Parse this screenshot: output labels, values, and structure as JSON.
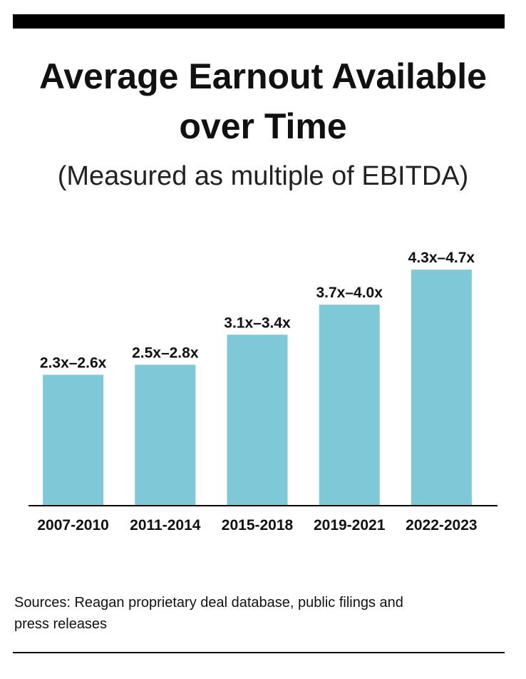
{
  "chart_data": {
    "type": "bar",
    "title": "Average Earnout Available over Time",
    "subtitle": "(Measured as multiple of EBITDA)",
    "categories": [
      "2007-2010",
      "2011-2014",
      "2015-2018",
      "2019-2021",
      "2022-2023"
    ],
    "values": [
      2.6,
      2.8,
      3.4,
      4.0,
      4.7
    ],
    "value_labels": [
      "2.3x–2.6x",
      "2.5x–2.8x",
      "3.1x–3.4x",
      "3.7x–4.0x",
      "4.3x–4.7x"
    ],
    "color": "#7ec8d8",
    "source": "Sources: Reagan proprietary deal database, public filings and press releases"
  }
}
